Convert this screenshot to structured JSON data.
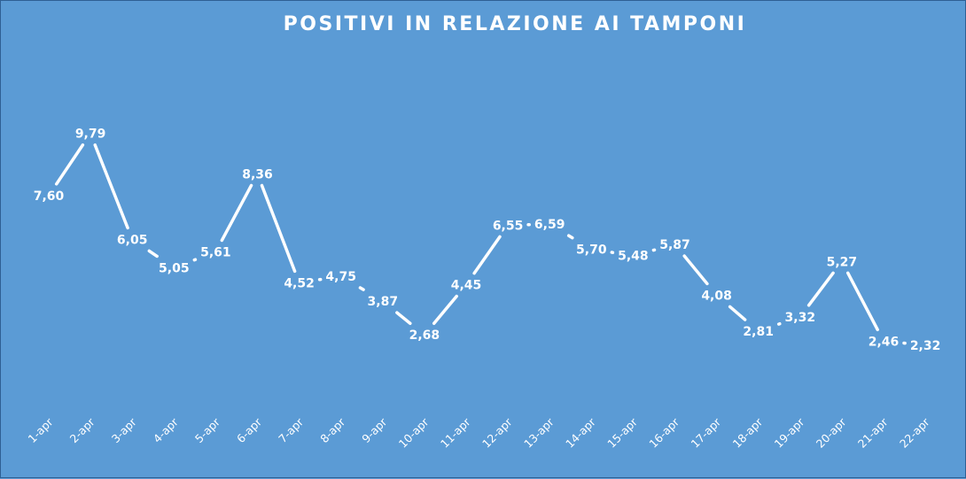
{
  "chart_data": {
    "type": "line",
    "title": "POSITIVI IN RELAZIONE AI TAMPONI",
    "xlabel": "",
    "ylabel": "",
    "categories": [
      "1-apr",
      "2-apr",
      "3-apr",
      "4-apr",
      "5-apr",
      "6-apr",
      "7-apr",
      "8-apr",
      "9-apr",
      "10-apr",
      "11-apr",
      "12-apr",
      "13-apr",
      "14-apr",
      "15-apr",
      "16-apr",
      "17-apr",
      "18-apr",
      "19-apr",
      "20-apr",
      "21-apr",
      "22-apr"
    ],
    "series": [
      {
        "values": [
          7.6,
          9.79,
          6.05,
          5.05,
          5.61,
          8.36,
          4.52,
          4.75,
          3.87,
          2.68,
          4.45,
          6.55,
          6.59,
          5.7,
          5.48,
          5.87,
          4.08,
          2.81,
          3.32,
          5.27,
          2.46,
          2.32
        ],
        "labels": [
          "7,60",
          "9,79",
          "6,05",
          "5,05",
          "5,61",
          "8,36",
          "4,52",
          "4,75",
          "3,87",
          "2,68",
          "4,45",
          "6,55",
          "6,59",
          "5,70",
          "5,48",
          "5,87",
          "4,08",
          "2,81",
          "3,32",
          "5,27",
          "2,46",
          "2,32"
        ]
      }
    ],
    "ylim": [
      0,
      10
    ],
    "grid": false,
    "legend": "none",
    "drop_lines": true,
    "colors": {
      "background": "#5b9bd5",
      "line": "#ffffff",
      "text": "#ffffff"
    }
  }
}
